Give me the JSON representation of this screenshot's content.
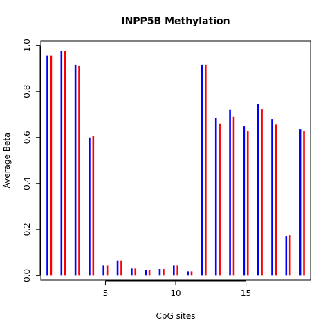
{
  "chart_data": {
    "type": "bar",
    "title": "INPP5B Methylation",
    "xlabel": "CpG sites",
    "ylabel": "Average Beta",
    "xlim": [
      0.4,
      19.6
    ],
    "ylim": [
      -0.02,
      1.02
    ],
    "xticks": [
      5,
      10,
      15
    ],
    "yticks": [
      0.0,
      0.2,
      0.4,
      0.6,
      0.8,
      1.0
    ],
    "ytick_labels": [
      "0.0",
      "0.2",
      "0.4",
      "0.6",
      "0.8",
      "1.0"
    ],
    "categories": [
      1,
      2,
      3,
      4,
      5,
      6,
      7,
      8,
      9,
      10,
      11,
      12,
      13,
      14,
      15,
      16,
      17,
      18,
      19
    ],
    "grid": false,
    "legend": "none",
    "series": [
      {
        "color": "#0000ff",
        "values": [
          0.955,
          0.975,
          0.915,
          0.6,
          0.045,
          0.065,
          0.03,
          0.025,
          0.028,
          0.045,
          0.018,
          0.915,
          0.685,
          0.72,
          0.65,
          0.745,
          0.68,
          0.172,
          0.635
        ]
      },
      {
        "color": "#ff0000",
        "values": [
          0.955,
          0.975,
          0.912,
          0.608,
          0.045,
          0.065,
          0.03,
          0.025,
          0.028,
          0.045,
          0.018,
          0.915,
          0.66,
          0.69,
          0.628,
          0.722,
          0.655,
          0.175,
          0.628
        ]
      }
    ]
  }
}
